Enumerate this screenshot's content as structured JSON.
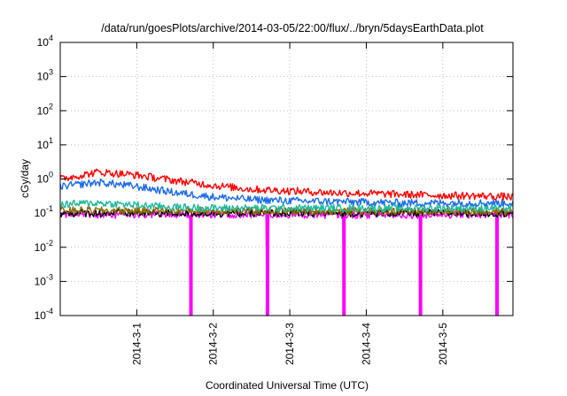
{
  "chart_data": {
    "type": "line",
    "title": "/data/run/goesPlots/archive/2014-03-05/22:00/flux/../bryn/5daysEarthData.plot",
    "xlabel": "Coordinated Universal Time (UTC)",
    "ylabel": "cGy/day",
    "y_scale": "log",
    "ylim": [
      0.0001,
      10000
    ],
    "y_ticks": [
      {
        "value": 0.0001,
        "base": "10",
        "exp": "-4"
      },
      {
        "value": 0.001,
        "base": "10",
        "exp": "-3"
      },
      {
        "value": 0.01,
        "base": "10",
        "exp": "-2"
      },
      {
        "value": 0.1,
        "base": "10",
        "exp": "-1"
      },
      {
        "value": 1,
        "base": "10",
        "exp": "0"
      },
      {
        "value": 10,
        "base": "10",
        "exp": "1"
      },
      {
        "value": 100,
        "base": "10",
        "exp": "2"
      },
      {
        "value": 1000,
        "base": "10",
        "exp": "3"
      },
      {
        "value": 10000,
        "base": "10",
        "exp": "4"
      }
    ],
    "xlim": [
      "2014-02-28 00:00",
      "2014-03-05 22:00"
    ],
    "x_ticks": [
      "2014-3-1",
      "2014-3-2",
      "2014-3-3",
      "2014-3-4",
      "2014-3-5"
    ],
    "grid": true,
    "series": [
      {
        "color": "#ff0000",
        "x": [
          "2014-02-28 00:00",
          "2014-02-28 12:00",
          "2014-03-01 00:00",
          "2014-03-01 12:00",
          "2014-03-02 00:00",
          "2014-03-02 12:00",
          "2014-03-03 00:00",
          "2014-03-03 12:00",
          "2014-03-04 00:00",
          "2014-03-04 12:00",
          "2014-03-05 00:00",
          "2014-03-05 12:00",
          "2014-03-05 22:00"
        ],
        "y": [
          1.0,
          1.6,
          1.3,
          0.9,
          0.65,
          0.5,
          0.45,
          0.4,
          0.38,
          0.35,
          0.33,
          0.32,
          0.3
        ]
      },
      {
        "color": "#1a6be8",
        "x": [
          "2014-02-28 00:00",
          "2014-02-28 12:00",
          "2014-03-01 00:00",
          "2014-03-01 12:00",
          "2014-03-02 00:00",
          "2014-03-02 12:00",
          "2014-03-03 00:00",
          "2014-03-03 12:00",
          "2014-03-04 00:00",
          "2014-03-04 12:00",
          "2014-03-05 00:00",
          "2014-03-05 12:00",
          "2014-03-05 22:00"
        ],
        "y": [
          0.6,
          0.8,
          0.6,
          0.4,
          0.3,
          0.25,
          0.23,
          0.22,
          0.21,
          0.2,
          0.2,
          0.2,
          0.2
        ]
      },
      {
        "color": "#1fb89a",
        "x": [
          "2014-02-28 00:00",
          "2014-02-28 12:00",
          "2014-03-01 00:00",
          "2014-03-01 12:00",
          "2014-03-02 00:00",
          "2014-03-02 12:00",
          "2014-03-03 00:00",
          "2014-03-03 12:00",
          "2014-03-04 00:00",
          "2014-03-04 12:00",
          "2014-03-05 00:00",
          "2014-03-05 12:00",
          "2014-03-05 22:00"
        ],
        "y": [
          0.18,
          0.2,
          0.17,
          0.15,
          0.14,
          0.14,
          0.14,
          0.14,
          0.14,
          0.14,
          0.14,
          0.14,
          0.14
        ]
      },
      {
        "color": "#8c6a00",
        "x": [
          "2014-02-28 00:00",
          "2014-03-05 22:00"
        ],
        "y": [
          0.12,
          0.11
        ]
      },
      {
        "color": "#000000",
        "x": [
          "2014-02-28 00:00",
          "2014-03-05 22:00"
        ],
        "y": [
          0.1,
          0.1
        ]
      },
      {
        "color": "#ff00ff",
        "x": [
          "2014-02-28 00:00",
          "2014-03-05 22:00"
        ],
        "y": [
          0.09,
          0.09
        ],
        "dropouts": [
          "2014-03-01 17:00",
          "2014-03-02 17:00",
          "2014-03-03 17:00",
          "2014-03-04 17:00",
          "2014-03-05 17:00"
        ]
      }
    ]
  }
}
